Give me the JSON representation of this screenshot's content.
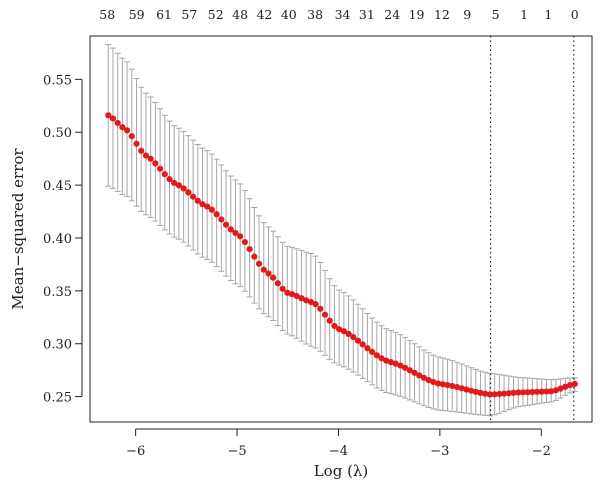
{
  "chart_data": {
    "type": "scatter",
    "title": "",
    "xlabel": "Log (λ)",
    "ylabel": "Mean−squared error",
    "xlim": [
      -6.45,
      -1.5
    ],
    "ylim": [
      0.226,
      0.591
    ],
    "x_ticks": [
      -6,
      -5,
      -4,
      -3,
      -2
    ],
    "x_tick_labels": [
      "−6",
      "−5",
      "−4",
      "−3",
      "−2"
    ],
    "y_ticks": [
      0.25,
      0.3,
      0.35,
      0.4,
      0.45,
      0.5,
      0.55
    ],
    "y_tick_labels": [
      "0.25",
      "0.30",
      "0.35",
      "0.40",
      "0.45",
      "0.50",
      "0.55"
    ],
    "top_axis": {
      "x": [
        -6.28,
        -5.99,
        -5.72,
        -5.47,
        -5.21,
        -4.97,
        -4.73,
        -4.49,
        -4.23,
        -3.96,
        -3.72,
        -3.47,
        -3.23,
        -2.98,
        -2.73,
        -2.45,
        -2.17,
        -1.93,
        -1.67
      ],
      "labels": [
        "58",
        "59",
        "61",
        "57",
        "52",
        "48",
        "42",
        "40",
        "38",
        "34",
        "31",
        "24",
        "19",
        "12",
        "9",
        "5",
        "1",
        "1",
        "0"
      ]
    },
    "reference_lines": [
      -2.5,
      -1.68
    ],
    "grid": false,
    "point_color": "#e31a1c",
    "errorbar_color": "#a6a6a6",
    "curve_points": [
      {
        "x": -6.27,
        "mse": 0.516,
        "lo": 0.449,
        "hi": 0.583
      },
      {
        "x": -6.1,
        "mse": 0.503,
        "lo": 0.44,
        "hi": 0.568
      },
      {
        "x": -5.9,
        "mse": 0.478,
        "lo": 0.422,
        "hi": 0.537
      },
      {
        "x": -5.6,
        "mse": 0.451,
        "lo": 0.4,
        "hi": 0.505
      },
      {
        "x": -5.3,
        "mse": 0.43,
        "lo": 0.38,
        "hi": 0.483
      },
      {
        "x": -5.0,
        "mse": 0.404,
        "lo": 0.356,
        "hi": 0.454
      },
      {
        "x": -4.7,
        "mse": 0.367,
        "lo": 0.326,
        "hi": 0.411
      },
      {
        "x": -4.5,
        "mse": 0.348,
        "lo": 0.309,
        "hi": 0.392
      },
      {
        "x": -4.25,
        "mse": 0.339,
        "lo": 0.297,
        "hi": 0.385
      },
      {
        "x": -4.0,
        "mse": 0.314,
        "lo": 0.28,
        "hi": 0.351
      },
      {
        "x": -3.5,
        "mse": 0.283,
        "lo": 0.253,
        "hi": 0.313
      },
      {
        "x": -3.0,
        "mse": 0.262,
        "lo": 0.237,
        "hi": 0.287
      },
      {
        "x": -2.5,
        "mse": 0.252,
        "lo": 0.232,
        "hi": 0.272
      },
      {
        "x": -2.2,
        "mse": 0.254,
        "lo": 0.241,
        "hi": 0.268
      },
      {
        "x": -1.9,
        "mse": 0.255,
        "lo": 0.245,
        "hi": 0.266
      },
      {
        "x": -1.67,
        "mse": 0.262,
        "lo": 0.255,
        "hi": 0.268
      }
    ],
    "n_points": 100
  }
}
